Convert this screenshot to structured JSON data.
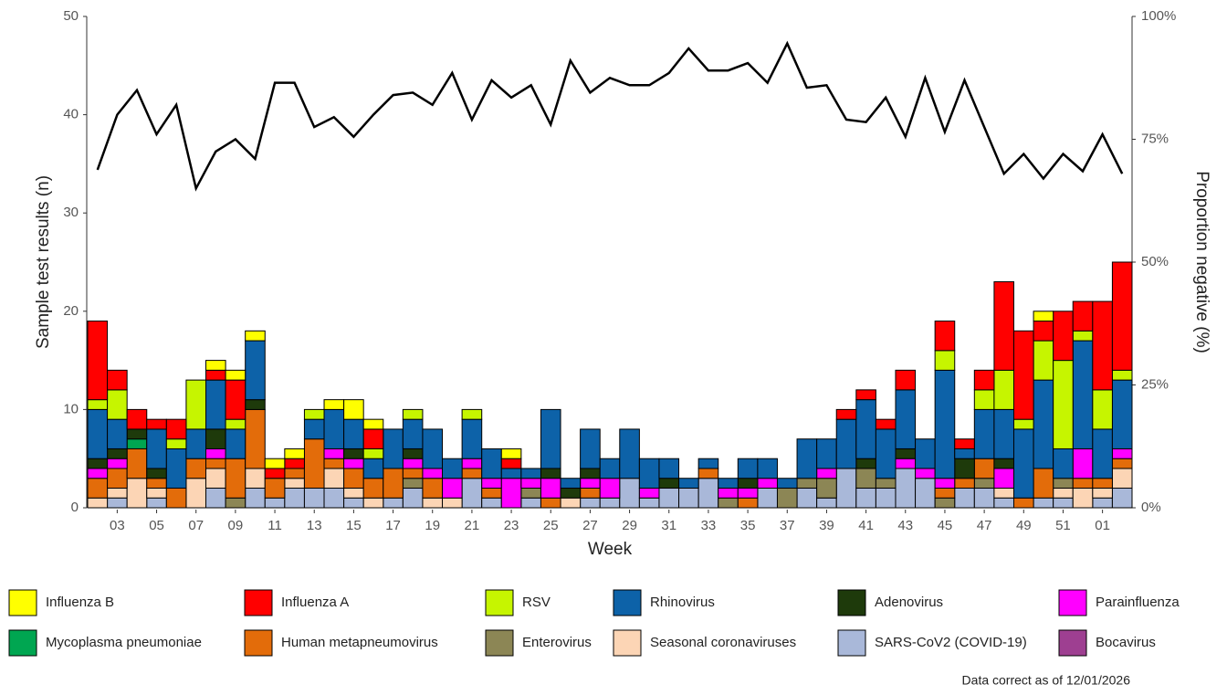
{
  "chart_data": {
    "type": "bar",
    "stacked": true,
    "x_label": "Week",
    "y_label": "Sample test results (n)",
    "y2_label": "Proportion negative (%)",
    "annotation": "Data correct as of 12/01/2026",
    "categories": [
      null,
      "03",
      null,
      "05",
      null,
      "07",
      null,
      "09",
      null,
      "11",
      null,
      "13",
      null,
      "15",
      null,
      "17",
      null,
      "19",
      null,
      "21",
      null,
      "23",
      null,
      "25",
      null,
      "27",
      null,
      "29",
      null,
      "31",
      null,
      "33",
      null,
      "35",
      null,
      "37",
      null,
      "39",
      null,
      "41",
      null,
      "43",
      null,
      "45",
      null,
      "47",
      null,
      "49",
      null,
      "51",
      null,
      "01",
      null
    ],
    "ylim": [
      0,
      50
    ],
    "yticks": [
      0,
      10,
      20,
      30,
      40,
      50
    ],
    "y2lim": [
      0,
      100
    ],
    "y2ticks": [
      {
        "value": 0,
        "label": "0%"
      },
      {
        "value": 25,
        "label": "25%"
      },
      {
        "value": 50,
        "label": "50%"
      },
      {
        "value": 75,
        "label": "75%"
      },
      {
        "value": 100,
        "label": "100%"
      }
    ],
    "grid": false,
    "legend": "bottom",
    "series": [
      {
        "name": "Influenza B",
        "color": "#ffff00",
        "values": [
          0,
          0,
          0,
          0,
          0,
          0,
          1,
          1,
          1,
          1,
          1,
          0,
          1,
          2,
          1,
          0,
          0,
          0,
          0,
          0,
          0,
          1,
          0,
          0,
          0,
          0,
          0,
          0,
          0,
          0,
          0,
          0,
          0,
          0,
          0,
          0,
          0,
          0,
          0,
          0,
          0,
          0,
          0,
          0,
          0,
          0,
          0,
          0,
          1,
          0,
          0,
          0,
          0
        ]
      },
      {
        "name": "Influenza A",
        "color": "#ff0000",
        "values": [
          8,
          2,
          2,
          1,
          2,
          0,
          1,
          4,
          0,
          1,
          1,
          0,
          0,
          0,
          2,
          0,
          0,
          0,
          0,
          0,
          0,
          1,
          0,
          0,
          0,
          0,
          0,
          0,
          0,
          0,
          0,
          0,
          0,
          0,
          0,
          0,
          0,
          0,
          1,
          1,
          1,
          2,
          0,
          3,
          1,
          2,
          9,
          9,
          2,
          5,
          3,
          9,
          11
        ]
      },
      {
        "name": "RSV",
        "color": "#c6f500",
        "values": [
          1,
          3,
          0,
          0,
          1,
          5,
          0,
          1,
          0,
          0,
          0,
          1,
          0,
          0,
          1,
          0,
          1,
          0,
          0,
          1,
          0,
          0,
          0,
          0,
          0,
          0,
          0,
          0,
          0,
          0,
          0,
          0,
          0,
          0,
          0,
          0,
          0,
          0,
          0,
          0,
          0,
          0,
          0,
          2,
          0,
          2,
          4,
          1,
          4,
          9,
          1,
          4,
          1
        ]
      },
      {
        "name": "Rhinovirus",
        "color": "#0d62a8",
        "values": [
          5,
          3,
          0,
          4,
          4,
          3,
          5,
          3,
          6,
          0,
          0,
          2,
          4,
          3,
          2,
          4,
          3,
          4,
          2,
          4,
          3,
          1,
          1,
          6,
          1,
          4,
          2,
          5,
          3,
          2,
          1,
          1,
          1,
          2,
          2,
          1,
          4,
          3,
          5,
          6,
          5,
          6,
          3,
          11,
          1,
          5,
          5,
          7,
          9,
          3,
          11,
          5,
          7
        ]
      },
      {
        "name": "Adenovirus",
        "color": "#1e3a0b",
        "values": [
          1,
          1,
          1,
          1,
          0,
          0,
          2,
          0,
          1,
          0,
          0,
          0,
          0,
          1,
          0,
          0,
          1,
          0,
          0,
          0,
          0,
          0,
          0,
          1,
          1,
          1,
          0,
          0,
          0,
          1,
          0,
          0,
          0,
          1,
          0,
          0,
          0,
          0,
          0,
          1,
          0,
          1,
          0,
          0,
          2,
          0,
          1,
          0,
          0,
          0,
          0,
          0,
          0
        ]
      },
      {
        "name": "Parainfluenza",
        "color": "#ff00ff",
        "values": [
          1,
          1,
          0,
          0,
          0,
          0,
          1,
          0,
          0,
          0,
          0,
          0,
          1,
          1,
          0,
          0,
          1,
          1,
          2,
          1,
          1,
          3,
          1,
          2,
          0,
          1,
          2,
          0,
          1,
          0,
          0,
          0,
          1,
          1,
          1,
          0,
          0,
          1,
          0,
          0,
          0,
          1,
          1,
          1,
          0,
          0,
          2,
          0,
          0,
          0,
          3,
          0,
          1
        ]
      },
      {
        "name": "Mycoplasma pneumoniae",
        "color": "#00a651",
        "values": [
          0,
          0,
          1,
          0,
          0,
          0,
          0,
          0,
          0,
          0,
          0,
          0,
          0,
          0,
          0,
          0,
          0,
          0,
          0,
          0,
          0,
          0,
          0,
          0,
          0,
          0,
          0,
          0,
          0,
          0,
          0,
          0,
          0,
          0,
          0,
          0,
          0,
          0,
          0,
          0,
          0,
          0,
          0,
          0,
          0,
          0,
          0,
          0,
          0,
          0,
          0,
          0,
          0
        ]
      },
      {
        "name": "Human metapneumovirus",
        "color": "#e36c0a",
        "values": [
          2,
          2,
          3,
          1,
          2,
          2,
          1,
          4,
          6,
          2,
          1,
          5,
          1,
          2,
          2,
          3,
          1,
          2,
          0,
          1,
          1,
          0,
          0,
          1,
          0,
          1,
          0,
          0,
          0,
          0,
          0,
          1,
          0,
          1,
          0,
          0,
          0,
          0,
          0,
          0,
          0,
          0,
          0,
          1,
          1,
          2,
          0,
          1,
          3,
          0,
          1,
          1,
          1
        ]
      },
      {
        "name": "Enterovirus",
        "color": "#8c8655",
        "values": [
          0,
          0,
          0,
          0,
          0,
          0,
          0,
          1,
          0,
          0,
          0,
          0,
          0,
          0,
          0,
          0,
          1,
          0,
          0,
          0,
          0,
          0,
          1,
          0,
          0,
          0,
          0,
          0,
          0,
          0,
          0,
          0,
          1,
          0,
          0,
          2,
          1,
          2,
          0,
          2,
          1,
          0,
          0,
          1,
          0,
          1,
          0,
          0,
          0,
          1,
          0,
          0,
          0
        ]
      },
      {
        "name": "Seasonal coronaviruses",
        "color": "#fcd5b5",
        "values": [
          1,
          1,
          3,
          1,
          0,
          3,
          2,
          0,
          2,
          0,
          1,
          0,
          2,
          1,
          1,
          0,
          0,
          1,
          1,
          0,
          0,
          0,
          0,
          0,
          1,
          0,
          0,
          0,
          0,
          0,
          0,
          0,
          0,
          0,
          0,
          0,
          0,
          0,
          0,
          0,
          0,
          0,
          0,
          0,
          0,
          0,
          1,
          0,
          0,
          1,
          2,
          1,
          2
        ]
      },
      {
        "name": "SARS-CoV2 (COVID-19)",
        "color": "#a9b8d9",
        "values": [
          0,
          1,
          0,
          1,
          0,
          0,
          2,
          0,
          2,
          1,
          2,
          2,
          2,
          1,
          0,
          1,
          2,
          0,
          0,
          3,
          1,
          0,
          1,
          0,
          0,
          1,
          1,
          3,
          1,
          2,
          2,
          3,
          0,
          0,
          2,
          0,
          2,
          1,
          4,
          2,
          2,
          4,
          3,
          0,
          2,
          2,
          1,
          0,
          1,
          1,
          0,
          1,
          2
        ]
      },
      {
        "name": "Bocavirus",
        "color": "#9e3f91",
        "values": [
          0,
          0,
          0,
          0,
          0,
          0,
          0,
          0,
          0,
          0,
          0,
          0,
          0,
          0,
          0,
          0,
          0,
          0,
          0,
          0,
          0,
          0,
          0,
          0,
          0,
          0,
          0,
          0,
          0,
          0,
          0,
          0,
          0,
          0,
          0,
          0,
          0,
          0,
          0,
          0,
          0,
          0,
          0,
          0,
          0,
          0,
          0,
          0,
          0,
          0,
          0,
          0,
          0
        ]
      }
    ],
    "line": {
      "type": "line",
      "axis": "y2",
      "color": "#000000",
      "values": [
        68.8,
        80,
        85,
        76,
        82,
        65,
        72.5,
        75,
        71,
        86.5,
        86.5,
        77.5,
        79.5,
        75.5,
        80,
        84,
        84.5,
        82,
        88.5,
        79,
        87,
        83.5,
        86,
        78,
        91,
        84.5,
        87.5,
        86,
        86,
        88.5,
        93.5,
        89,
        89,
        90.5,
        86.5,
        94.5,
        85.5,
        86,
        79,
        78.5,
        83.5,
        75.5,
        87.5,
        76.5,
        87,
        77.5,
        68,
        72,
        67,
        72,
        68.5,
        76,
        68
      ]
    }
  }
}
